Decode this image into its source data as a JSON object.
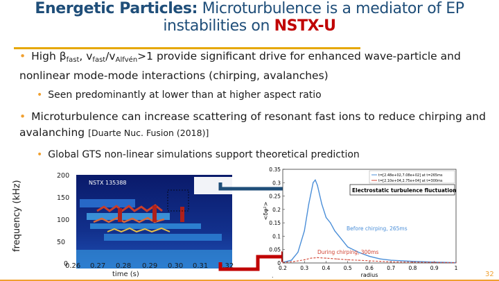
{
  "title": {
    "bold": "Energetic Particles:",
    "text": "Microturbulence is a mediator of EP instabilities on",
    "highlight": "NSTX-U"
  },
  "bullet1": {
    "pre": "High β",
    "sub1": "fast",
    "mid1": ", v",
    "sub2": "fast",
    "mid2": "/v",
    "sub3": "Alfvén",
    "rest": ">1 provide significant drive for enhanced wave-particle and nonlinear mode-mode interactions (chirping, avalanches)"
  },
  "sub_bullet1": "Seen predominantly at lower than at higher aspect ratio",
  "bullet2": {
    "text": "Microturbulence can increase scattering of resonant fast ions to reduce chirping and avalanching",
    "ref": "[Duarte Nuc. Fusion (2018)]"
  },
  "sub_bullet2": "Global GTS non-linear simulations support theoretical prediction",
  "spectrogram": {
    "shot_label": "NSTX 135388",
    "ylabel": "frequency (kHz)",
    "xlabel": "time (s)",
    "yticks": [
      "200",
      "150",
      "100",
      "50",
      "0"
    ],
    "xticks": [
      "0.26",
      "0.27",
      "0.28",
      "0.29",
      "0.30",
      "0.31",
      "0.32"
    ]
  },
  "chart_data": {
    "type": "line",
    "xlabel": "radius",
    "ylabel": "<δφ²>",
    "xlim": [
      0.2,
      1.0
    ],
    "ylim": [
      0,
      0.35
    ],
    "xticks": [
      "0.2",
      "0.3",
      "0.4",
      "0.5",
      "0.6",
      "0.7",
      "0.8",
      "0.9",
      "1"
    ],
    "yticks": [
      "0",
      "0.05",
      "0.1",
      "0.15",
      "0.2",
      "0.25",
      "0.3",
      "0.35"
    ],
    "legend": [
      "t=[2.48e+02,7.08e+02] at t=265ms",
      "t=[2.10e+04,2.75e+04] at t=300ms"
    ],
    "series": [
      {
        "color": "#4a8ed8",
        "x": [
          0.2,
          0.24,
          0.27,
          0.3,
          0.32,
          0.34,
          0.35,
          0.36,
          0.38,
          0.4,
          0.42,
          0.44,
          0.47,
          0.5,
          0.55,
          0.6,
          0.65,
          0.7,
          0.8,
          0.9,
          1.0
        ],
        "y": [
          0.002,
          0.01,
          0.04,
          0.12,
          0.22,
          0.3,
          0.31,
          0.29,
          0.22,
          0.17,
          0.15,
          0.12,
          0.09,
          0.06,
          0.04,
          0.025,
          0.015,
          0.01,
          0.006,
          0.003,
          0.001
        ]
      },
      {
        "color": "#d04030",
        "x": [
          0.2,
          0.25,
          0.3,
          0.33,
          0.36,
          0.4,
          0.45,
          0.5,
          0.55,
          0.6,
          0.65,
          0.7,
          0.8,
          0.9,
          1.0
        ],
        "y": [
          0.002,
          0.005,
          0.012,
          0.018,
          0.02,
          0.018,
          0.015,
          0.012,
          0.01,
          0.008,
          0.006,
          0.004,
          0.003,
          0.002,
          0.001
        ]
      }
    ],
    "annotations": {
      "box": "Electrostatic turbulence fluctuation",
      "before": "Before chirping, 265ms",
      "during": "During chirping, 300ms"
    }
  },
  "footer": {
    "page": "32",
    "dot": "."
  },
  "colors": {
    "title": "#1f4e79",
    "accent": "#c00000",
    "rule": "#e6a700",
    "bullet": "#f0a030",
    "arrow": "#1f4e79"
  }
}
